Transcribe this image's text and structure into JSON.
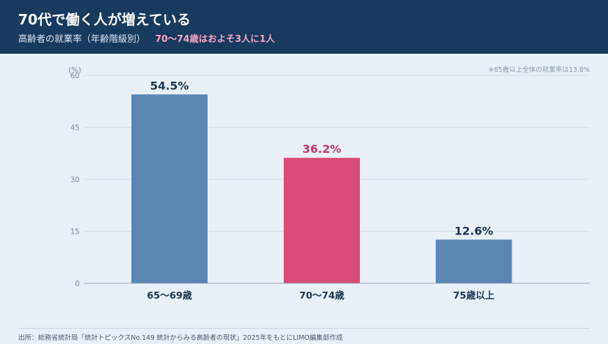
{
  "header": {
    "title": "70代で働く人が増えている",
    "subtitle": "高齢者の就業率（年齢階級別）",
    "highlight": "70〜74歳はおよそ3人に1人"
  },
  "note": "※65歳以上全体の就業率は13.8%",
  "source": "出所：総務省統計局「統計トピックスNo.149 統計からみる高齢者の現状」2025年をもとにLIMO編集部作成",
  "colors": {
    "header_bg": "#173a5e",
    "bar_blue": "#5b86b4",
    "bar_pink": "#d94c78",
    "label_dark": "#1f3550",
    "label_pink": "#c7366a"
  },
  "chart_data": {
    "type": "bar",
    "ylabel": "(%)",
    "ylim": [
      0,
      60
    ],
    "yticks": [
      0,
      15,
      30,
      45,
      60
    ],
    "grid": true,
    "categories": [
      "65〜69歳",
      "70〜74歳",
      "75歳以上"
    ],
    "values": [
      54.5,
      36.2,
      12.6
    ],
    "value_labels": [
      "54.5%",
      "36.2%",
      "12.6%"
    ],
    "highlight_index": 1
  }
}
